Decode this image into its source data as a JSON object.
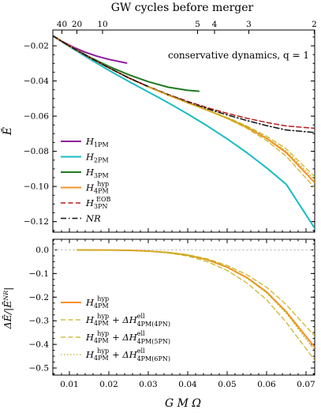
{
  "chart_data": [
    {
      "type": "line",
      "panel": "top",
      "top_axis": {
        "title": "GW cycles before merger",
        "ticks": [
          {
            "label": "40",
            "x": 0.0081
          },
          {
            "label": "20",
            "x": 0.0119
          },
          {
            "label": "10",
            "x": 0.0184
          },
          {
            "label": "5",
            "x": 0.0425
          },
          {
            "label": "4",
            "x": 0.0468
          },
          {
            "label": "3",
            "x": 0.0555
          },
          {
            "label": "2",
            "x": 0.0721
          }
        ]
      },
      "ylabel": "Ē",
      "xlim": [
        0.0058,
        0.0722
      ],
      "ylim": [
        -0.126,
        -0.011
      ],
      "yticks": [
        -0.02,
        -0.04,
        -0.06,
        -0.08,
        -0.1,
        -0.12
      ],
      "ytick_labels": [
        "−0.02",
        "−0.04",
        "−0.06",
        "−0.08",
        "−0.10",
        "−0.12"
      ],
      "annotation": "conservative dynamics,  q = 1",
      "legend_position": "bottom-left",
      "series": [
        {
          "name": "H",
          "sub": "1PM",
          "sup": "",
          "color": "#8e1a9c",
          "dash": "solid",
          "width": 2,
          "points": [
            [
              0.0058,
              -0.0143
            ],
            [
              0.008,
              -0.0173
            ],
            [
              0.011,
              -0.0208
            ],
            [
              0.014,
              -0.0236
            ],
            [
              0.017,
              -0.0259
            ],
            [
              0.02,
              -0.0277
            ],
            [
              0.0245,
              -0.0298
            ]
          ]
        },
        {
          "name": "H",
          "sub": "2PM",
          "sup": "",
          "color": "#17bcc4",
          "dash": "solid",
          "width": 2,
          "points": [
            [
              0.0058,
              -0.0143
            ],
            [
              0.008,
              -0.0176
            ],
            [
              0.01,
              -0.0204
            ],
            [
              0.015,
              -0.0273
            ],
            [
              0.02,
              -0.0339
            ],
            [
              0.025,
              -0.0402
            ],
            [
              0.03,
              -0.0462
            ],
            [
              0.035,
              -0.0523
            ],
            [
              0.04,
              -0.0588
            ],
            [
              0.045,
              -0.0656
            ],
            [
              0.05,
              -0.0729
            ],
            [
              0.055,
              -0.0808
            ],
            [
              0.06,
              -0.0894
            ],
            [
              0.065,
              -0.0988
            ],
            [
              0.0722,
              -0.1238
            ]
          ]
        },
        {
          "name": "H",
          "sub": "3PM",
          "sup": "",
          "color": "#1f7a1f",
          "dash": "solid",
          "width": 2,
          "points": [
            [
              0.0058,
              -0.0143
            ],
            [
              0.01,
              -0.0201
            ],
            [
              0.015,
              -0.0262
            ],
            [
              0.02,
              -0.0317
            ],
            [
              0.025,
              -0.0364
            ],
            [
              0.03,
              -0.0404
            ],
            [
              0.035,
              -0.0435
            ],
            [
              0.04,
              -0.0453
            ],
            [
              0.0428,
              -0.0458
            ]
          ]
        },
        {
          "name": "H",
          "sub": "4PM",
          "sup": "hyp",
          "color": "#f5902a",
          "dash": "solid",
          "width": 2,
          "points": [
            [
              0.0058,
              -0.0143
            ],
            [
              0.01,
              -0.0201
            ],
            [
              0.015,
              -0.0265
            ],
            [
              0.02,
              -0.0325
            ],
            [
              0.025,
              -0.0382
            ],
            [
              0.03,
              -0.0433
            ],
            [
              0.035,
              -0.048
            ],
            [
              0.04,
              -0.0524
            ],
            [
              0.045,
              -0.0566
            ],
            [
              0.05,
              -0.0611
            ],
            [
              0.055,
              -0.0663
            ],
            [
              0.06,
              -0.0727
            ],
            [
              0.065,
              -0.0808
            ],
            [
              0.0722,
              -0.0978
            ]
          ]
        },
        {
          "name": "H",
          "sub": "3PN",
          "sup": "EOB",
          "color": "#b51c1c",
          "dash": "dashed",
          "width": 1.5,
          "points": [
            [
              0.0058,
              -0.0143
            ],
            [
              0.01,
              -0.0201
            ],
            [
              0.015,
              -0.0265
            ],
            [
              0.02,
              -0.0325
            ],
            [
              0.025,
              -0.0381
            ],
            [
              0.03,
              -0.0431
            ],
            [
              0.035,
              -0.0476
            ],
            [
              0.04,
              -0.0516
            ],
            [
              0.045,
              -0.0552
            ],
            [
              0.05,
              -0.0584
            ],
            [
              0.055,
              -0.0612
            ],
            [
              0.06,
              -0.0636
            ],
            [
              0.065,
              -0.0656
            ],
            [
              0.0722,
              -0.0669
            ]
          ]
        },
        {
          "name": "NR",
          "sub": "",
          "sup": "",
          "color": "#111111",
          "dash": "dashdot",
          "width": 1.5,
          "points": [
            [
              0.0058,
              -0.0143
            ],
            [
              0.01,
              -0.0201
            ],
            [
              0.015,
              -0.0265
            ],
            [
              0.02,
              -0.0325
            ],
            [
              0.025,
              -0.0382
            ],
            [
              0.03,
              -0.0432
            ],
            [
              0.035,
              -0.0478
            ],
            [
              0.04,
              -0.052
            ],
            [
              0.045,
              -0.0558
            ],
            [
              0.05,
              -0.0593
            ],
            [
              0.055,
              -0.0625
            ],
            [
              0.06,
              -0.0654
            ],
            [
              0.065,
              -0.0679
            ],
            [
              0.0722,
              -0.0693
            ]
          ]
        },
        {
          "legend": false,
          "color": "#c8b21f",
          "dash": "dashed",
          "width": 1.2,
          "points": [
            [
              0.03,
              -0.0433
            ],
            [
              0.035,
              -0.048
            ],
            [
              0.04,
              -0.0524
            ],
            [
              0.045,
              -0.0567
            ],
            [
              0.05,
              -0.0614
            ],
            [
              0.055,
              -0.0669
            ],
            [
              0.06,
              -0.0739
            ],
            [
              0.065,
              -0.0828
            ],
            [
              0.0722,
              -0.1008
            ]
          ]
        },
        {
          "legend": false,
          "color": "#c8b21f",
          "dash": "dashed",
          "width": 1.2,
          "points": [
            [
              0.03,
              -0.0433
            ],
            [
              0.035,
              -0.048
            ],
            [
              0.04,
              -0.0523
            ],
            [
              0.045,
              -0.0564
            ],
            [
              0.05,
              -0.0607
            ],
            [
              0.055,
              -0.0656
            ],
            [
              0.06,
              -0.0714
            ],
            [
              0.065,
              -0.0786
            ],
            [
              0.0722,
              -0.0945
            ]
          ]
        },
        {
          "legend": false,
          "color": "#c8b21f",
          "dash": "dotted",
          "width": 1.2,
          "points": [
            [
              0.03,
              -0.0433
            ],
            [
              0.035,
              -0.048
            ],
            [
              0.04,
              -0.0524
            ],
            [
              0.045,
              -0.0565
            ],
            [
              0.05,
              -0.0609
            ],
            [
              0.055,
              -0.066
            ],
            [
              0.06,
              -0.0722
            ],
            [
              0.065,
              -0.0799
            ],
            [
              0.0722,
              -0.0962
            ]
          ]
        }
      ]
    },
    {
      "type": "line",
      "panel": "bottom",
      "ylabel": "ΔĒ/|Ēᴺᴿ|",
      "xlabel": "G M Ω",
      "xlim": [
        0.0058,
        0.0722
      ],
      "ylim": [
        -0.53,
        0.045
      ],
      "xticks": [
        0.01,
        0.02,
        0.03,
        0.04,
        0.05,
        0.06,
        0.07
      ],
      "xtick_labels": [
        "0.01",
        "0.02",
        "0.03",
        "0.04",
        "0.05",
        "0.06",
        "0.07"
      ],
      "yticks": [
        0.0,
        -0.1,
        -0.2,
        -0.3,
        -0.4,
        -0.5
      ],
      "ytick_labels": [
        "0.0",
        "−0.1",
        "−0.2",
        "−0.3",
        "−0.4",
        "−0.5"
      ],
      "zero_line": true,
      "legend_position": "bottom-left",
      "series": [
        {
          "name": "H",
          "sub": "4PM",
          "sup": "hyp",
          "extra": "",
          "color": "#f5902a",
          "dash": "solid",
          "width": 2,
          "points": [
            [
              0.012,
              0.0
            ],
            [
              0.02,
              -0.0005
            ],
            [
              0.025,
              -0.002
            ],
            [
              0.03,
              -0.005
            ],
            [
              0.035,
              -0.011
            ],
            [
              0.04,
              -0.022
            ],
            [
              0.045,
              -0.042
            ],
            [
              0.05,
              -0.073
            ],
            [
              0.055,
              -0.117
            ],
            [
              0.06,
              -0.178
            ],
            [
              0.065,
              -0.262
            ],
            [
              0.0722,
              -0.412
            ]
          ]
        },
        {
          "name": "H",
          "sub": "4PM",
          "sup": "hyp",
          "extra": "4PM(4PN)",
          "color": "#c8b21f",
          "dash": "dashed",
          "width": 1.2,
          "points": [
            [
              0.012,
              0.0
            ],
            [
              0.02,
              -0.0005
            ],
            [
              0.025,
              -0.002
            ],
            [
              0.03,
              -0.006
            ],
            [
              0.035,
              -0.013
            ],
            [
              0.04,
              -0.026
            ],
            [
              0.045,
              -0.05
            ],
            [
              0.05,
              -0.087
            ],
            [
              0.055,
              -0.14
            ],
            [
              0.06,
              -0.211
            ],
            [
              0.065,
              -0.307
            ],
            [
              0.0722,
              -0.467
            ]
          ]
        },
        {
          "name": "H",
          "sub": "4PM",
          "sup": "hyp",
          "extra": "4PM(5PN)",
          "color": "#c8b21f",
          "dash": "dashed",
          "width": 1.2,
          "points": [
            [
              0.012,
              0.0
            ],
            [
              0.02,
              -0.0005
            ],
            [
              0.025,
              -0.002
            ],
            [
              0.03,
              -0.005
            ],
            [
              0.035,
              -0.01
            ],
            [
              0.04,
              -0.02
            ],
            [
              0.045,
              -0.038
            ],
            [
              0.05,
              -0.066
            ],
            [
              0.055,
              -0.105
            ],
            [
              0.06,
              -0.158
            ],
            [
              0.065,
              -0.232
            ],
            [
              0.0722,
              -0.365
            ]
          ]
        },
        {
          "name": "H",
          "sub": "4PM",
          "sup": "hyp",
          "extra": "4PM(6PN)",
          "color": "#c8b21f",
          "dash": "dotted",
          "width": 1.2,
          "points": [
            [
              0.012,
              0.0
            ],
            [
              0.02,
              -0.0005
            ],
            [
              0.025,
              -0.002
            ],
            [
              0.03,
              -0.0055
            ],
            [
              0.035,
              -0.0115
            ],
            [
              0.04,
              -0.0225
            ],
            [
              0.045,
              -0.043
            ],
            [
              0.05,
              -0.075
            ],
            [
              0.055,
              -0.12
            ],
            [
              0.06,
              -0.182
            ],
            [
              0.065,
              -0.268
            ],
            [
              0.0722,
              -0.425
            ]
          ]
        }
      ]
    }
  ]
}
